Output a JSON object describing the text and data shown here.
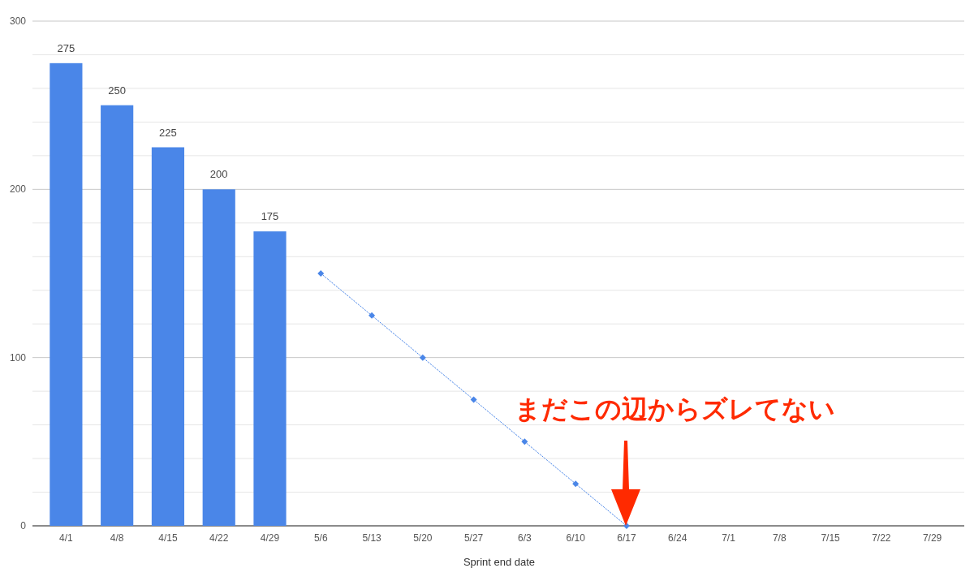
{
  "chart_data": {
    "type": "bar",
    "xlabel": "Sprint end date",
    "categories": [
      "4/1",
      "4/8",
      "4/15",
      "4/22",
      "4/29",
      "5/6",
      "5/13",
      "5/20",
      "5/27",
      "6/3",
      "6/10",
      "6/17",
      "6/24",
      "7/1",
      "7/8",
      "7/15",
      "7/22",
      "7/29"
    ],
    "series": [
      {
        "color": "#4a86e8",
        "values": [
          275,
          250,
          225,
          200,
          175,
          null,
          null,
          null,
          null,
          null,
          null,
          null,
          null,
          null,
          null,
          null,
          null,
          null
        ],
        "value_labels": [
          "275",
          "250",
          "225",
          "200",
          "175",
          null,
          null,
          null,
          null,
          null,
          null,
          null,
          null,
          null,
          null,
          null,
          null,
          null
        ]
      },
      {
        "type": "line",
        "color": "#4a86e8",
        "marker": "diamond",
        "line_style": "dotted",
        "values": [
          null,
          null,
          null,
          null,
          null,
          150,
          125,
          100,
          75,
          50,
          25,
          0,
          null,
          null,
          null,
          null,
          null,
          null
        ]
      }
    ],
    "ylim": [
      0,
      300
    ],
    "yticks": [
      0,
      {
        "value": 20,
        "label": null
      },
      {
        "value": 40,
        "label": null
      },
      {
        "value": 60,
        "label": null
      },
      {
        "value": 80,
        "label": null
      },
      100,
      {
        "value": 120,
        "label": null
      },
      {
        "value": 140,
        "label": null
      },
      {
        "value": 160,
        "label": null
      },
      {
        "value": 180,
        "label": null
      },
      200,
      {
        "value": 220,
        "label": null
      },
      {
        "value": 240,
        "label": null
      },
      {
        "value": 260,
        "label": null
      },
      {
        "value": 280,
        "label": null
      },
      300
    ],
    "grid": true,
    "annotations": [
      "まだこの辺からズレてない"
    ]
  }
}
